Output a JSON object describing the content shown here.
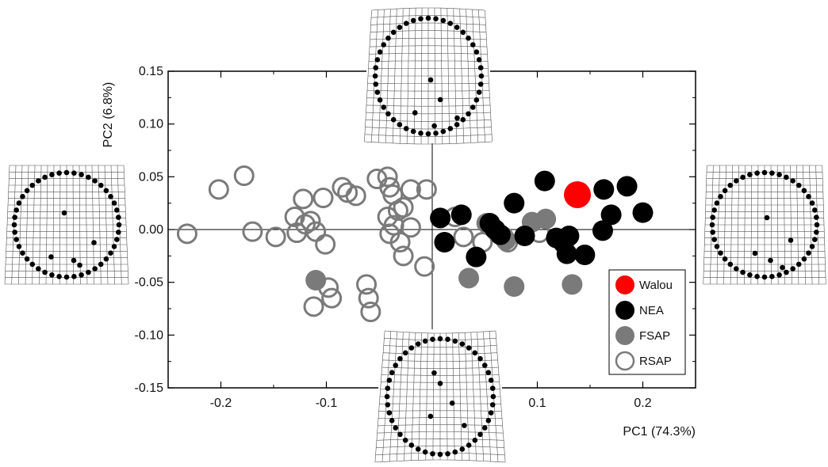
{
  "chart_data": {
    "type": "scatter",
    "title": "",
    "xlabel": "PC1 (74.3%)",
    "ylabel": "PC2 (6.8%)",
    "xlim": [
      -0.25,
      0.25
    ],
    "ylim": [
      -0.15,
      0.15
    ],
    "xticks": [
      -0.2,
      -0.1,
      0.1,
      0.2
    ],
    "xtick_labels": [
      "-0.2",
      "-0.1",
      "0.1",
      "0.2"
    ],
    "yticks": [
      0.15,
      0.1,
      0.05,
      0.0,
      -0.05,
      -0.1,
      -0.15
    ],
    "ytick_labels": [
      "0.15",
      "0.10",
      "0.05",
      "0.00",
      "-0.05",
      "-0.10",
      "-0.15"
    ],
    "grid": false,
    "legend_position": "bottom-right",
    "series": [
      {
        "name": "RSAP",
        "style": "open",
        "color": "#7a7a7a",
        "points": [
          [
            -0.232,
            -0.004
          ],
          [
            -0.202,
            0.038
          ],
          [
            -0.178,
            0.051
          ],
          [
            -0.17,
            -0.002
          ],
          [
            -0.148,
            -0.007
          ],
          [
            -0.13,
            0.012
          ],
          [
            -0.128,
            -0.003
          ],
          [
            -0.122,
            0.029
          ],
          [
            -0.12,
            0.005
          ],
          [
            -0.115,
            0.008
          ],
          [
            -0.11,
            -0.002
          ],
          [
            -0.103,
            0.03
          ],
          [
            -0.101,
            -0.014
          ],
          [
            -0.085,
            0.04
          ],
          [
            -0.08,
            0.035
          ],
          [
            -0.072,
            0.032
          ],
          [
            -0.052,
            0.048
          ],
          [
            -0.042,
            0.05
          ],
          [
            -0.04,
            0.04
          ],
          [
            -0.037,
            0.033
          ],
          [
            -0.042,
            0.012
          ],
          [
            -0.036,
            0.004
          ],
          [
            -0.032,
            0.018
          ],
          [
            -0.027,
            0.021
          ],
          [
            -0.04,
            -0.004
          ],
          [
            -0.03,
            -0.012
          ],
          [
            -0.027,
            -0.025
          ],
          [
            -0.02,
            0.038
          ],
          [
            -0.02,
            0.002
          ],
          [
            -0.007,
            -0.035
          ],
          [
            -0.005,
            0.038
          ],
          [
            0.022,
            0.012
          ],
          [
            0.03,
            -0.007
          ],
          [
            0.048,
            -0.012
          ],
          [
            0.068,
            -0.007
          ],
          [
            0.072,
            -0.012
          ],
          [
            0.102,
            -0.003
          ],
          [
            -0.112,
            -0.073
          ],
          [
            -0.098,
            -0.055
          ],
          [
            -0.095,
            -0.065
          ],
          [
            -0.062,
            -0.052
          ],
          [
            -0.06,
            -0.065
          ],
          [
            -0.058,
            -0.078
          ]
        ]
      },
      {
        "name": "FSAP",
        "style": "filled",
        "color": "#7a7a7a",
        "points": [
          [
            -0.11,
            -0.048
          ],
          [
            0.035,
            -0.046
          ],
          [
            0.078,
            -0.054
          ],
          [
            0.133,
            -0.052
          ],
          [
            0.052,
            0.006
          ],
          [
            0.07,
            -0.01
          ],
          [
            0.095,
            0.007
          ],
          [
            0.108,
            0.01
          ]
        ]
      },
      {
        "name": "NEA",
        "style": "filled",
        "color": "#000000",
        "points": [
          [
            0.008,
            0.011
          ],
          [
            0.012,
            -0.012
          ],
          [
            0.028,
            0.014
          ],
          [
            0.042,
            -0.026
          ],
          [
            0.055,
            0.006
          ],
          [
            0.06,
            0.0
          ],
          [
            0.065,
            -0.005
          ],
          [
            0.078,
            0.025
          ],
          [
            0.088,
            -0.006
          ],
          [
            0.107,
            0.046
          ],
          [
            0.118,
            -0.008
          ],
          [
            0.125,
            -0.013
          ],
          [
            0.128,
            -0.023
          ],
          [
            0.13,
            -0.006
          ],
          [
            0.145,
            -0.024
          ],
          [
            0.163,
            0.038
          ],
          [
            0.162,
            -0.001
          ],
          [
            0.17,
            0.014
          ],
          [
            0.185,
            0.041
          ],
          [
            0.2,
            0.016
          ]
        ]
      },
      {
        "name": "Walou",
        "style": "filled-large",
        "color": "#ff0000",
        "points": [
          [
            0.138,
            0.033
          ]
        ]
      }
    ]
  }
}
